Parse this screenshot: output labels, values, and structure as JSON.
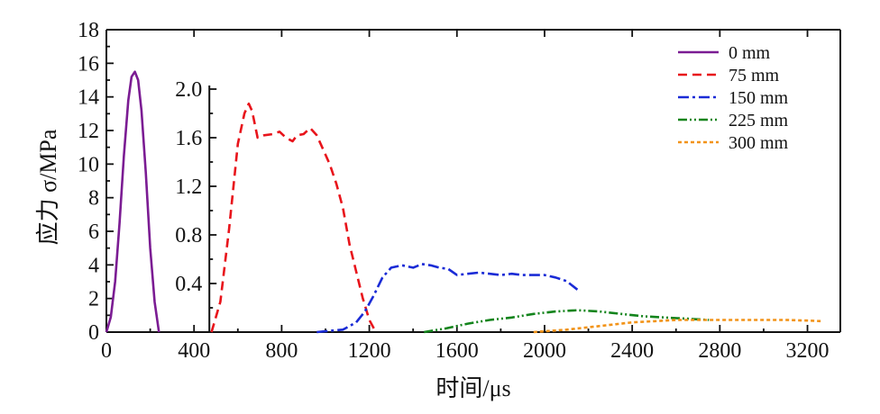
{
  "chart_data": {
    "type": "line",
    "xlabel": "时间/μs",
    "ylabel": "应力 σ/MPa",
    "xlim": [
      0,
      3350
    ],
    "ylim_main": [
      0,
      18
    ],
    "ylim_inset": [
      0,
      2.0
    ],
    "x_ticks": [
      "0",
      "400",
      "800",
      "1200",
      "1600",
      "2000",
      "2400",
      "2800",
      "3200"
    ],
    "y_ticks_main": [
      "0",
      "2",
      "4",
      "6",
      "8",
      "10",
      "12",
      "14",
      "16",
      "18"
    ],
    "y_ticks_inset": [
      "0.4",
      "0.8",
      "1.2",
      "1.6",
      "2.0"
    ],
    "inset_axis_x": 470,
    "legend_position": "top-right",
    "series": [
      {
        "name": "0 mm",
        "axis": "main",
        "color": "#7b1c93",
        "dash": "solid",
        "x": [
          0,
          20,
          40,
          60,
          80,
          100,
          115,
          130,
          145,
          160,
          180,
          200,
          220,
          240
        ],
        "y": [
          0,
          0.9,
          3.0,
          6.5,
          10.5,
          13.8,
          15.2,
          15.5,
          15.0,
          13.2,
          9.5,
          5.0,
          1.8,
          0
        ]
      },
      {
        "name": "75 mm",
        "axis": "inset",
        "color": "#e8141b",
        "dash": "10,6",
        "x": [
          480,
          520,
          560,
          600,
          630,
          650,
          665,
          690,
          720,
          760,
          790,
          820,
          850,
          870,
          900,
          930,
          960,
          990,
          1020,
          1050,
          1080,
          1110,
          1140,
          1170,
          1200,
          1230
        ],
        "y": [
          0,
          0.25,
          0.85,
          1.55,
          1.8,
          1.88,
          1.82,
          1.6,
          1.62,
          1.63,
          1.65,
          1.6,
          1.57,
          1.62,
          1.63,
          1.68,
          1.62,
          1.5,
          1.38,
          1.22,
          1.02,
          0.72,
          0.5,
          0.28,
          0.1,
          0
        ]
      },
      {
        "name": "150 mm",
        "axis": "inset",
        "color": "#1a2bd6",
        "dash": "12,4,3,4",
        "x": [
          960,
          1020,
          1080,
          1140,
          1180,
          1220,
          1260,
          1300,
          1350,
          1400,
          1440,
          1480,
          1520,
          1560,
          1600,
          1650,
          1700,
          1750,
          1800,
          1850,
          1900,
          1950,
          2000,
          2050,
          2100,
          2150
        ],
        "y": [
          0,
          0.01,
          0.02,
          0.08,
          0.17,
          0.3,
          0.45,
          0.53,
          0.55,
          0.53,
          0.56,
          0.55,
          0.53,
          0.52,
          0.47,
          0.48,
          0.49,
          0.48,
          0.47,
          0.48,
          0.47,
          0.47,
          0.47,
          0.45,
          0.42,
          0.35
        ]
      },
      {
        "name": "225 mm",
        "axis": "inset",
        "color": "#13841c",
        "dash": "10,3,2,3,2,3",
        "x": [
          1450,
          1550,
          1650,
          1750,
          1850,
          1950,
          2050,
          2150,
          2250,
          2350,
          2450,
          2550,
          2650,
          2750
        ],
        "y": [
          0,
          0.03,
          0.07,
          0.1,
          0.12,
          0.15,
          0.17,
          0.18,
          0.17,
          0.15,
          0.13,
          0.12,
          0.11,
          0.1
        ]
      },
      {
        "name": "300 mm",
        "axis": "inset",
        "color": "#f29318",
        "dash": "4,3",
        "x": [
          1950,
          2100,
          2250,
          2400,
          2500,
          2600,
          2700,
          2800,
          2900,
          3000,
          3100,
          3200,
          3270
        ],
        "y": [
          0,
          0.02,
          0.05,
          0.08,
          0.09,
          0.1,
          0.1,
          0.1,
          0.1,
          0.1,
          0.1,
          0.095,
          0.09
        ]
      }
    ]
  }
}
